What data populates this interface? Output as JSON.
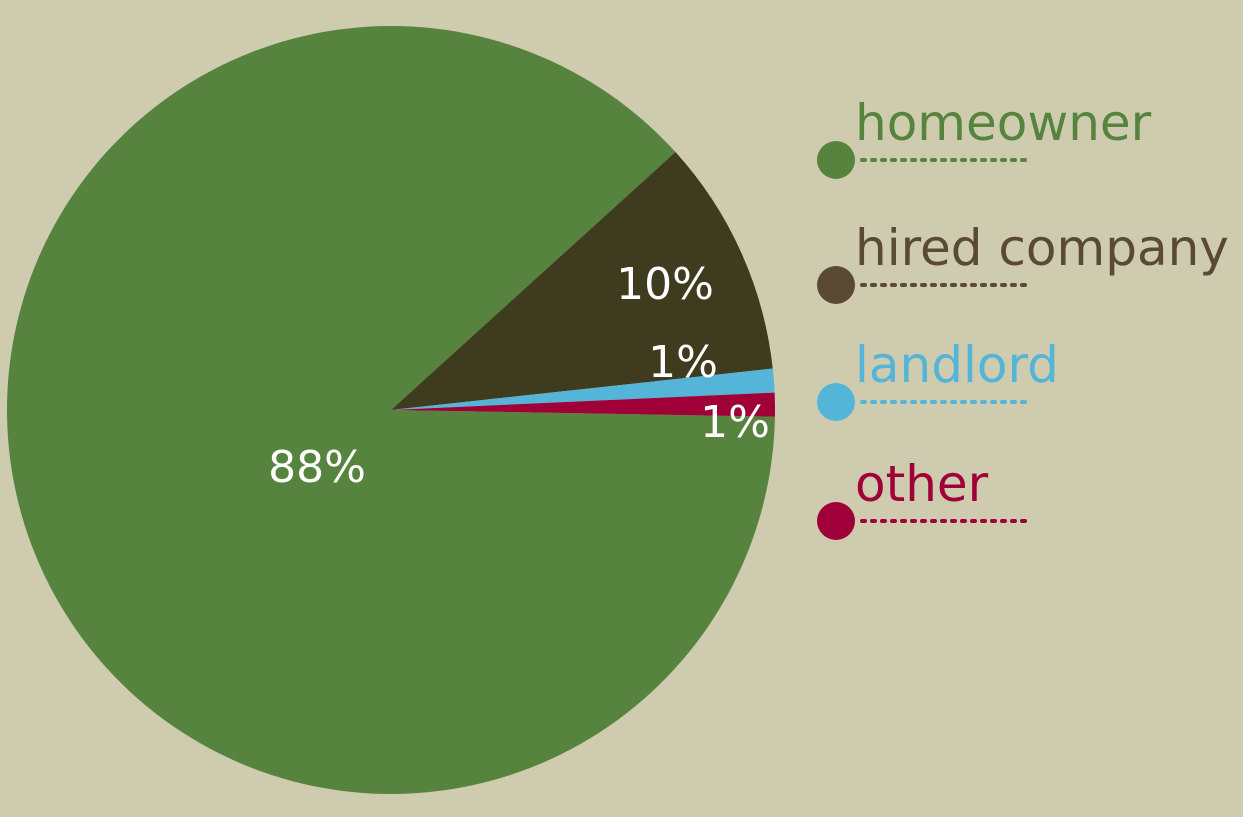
{
  "chart_data": {
    "type": "pie",
    "categories": [
      "homeowner",
      "hired company",
      "landlord",
      "other"
    ],
    "values": [
      88,
      10,
      1,
      1
    ],
    "value_labels": [
      "88%",
      "10%",
      "1%",
      "1%"
    ],
    "colors": [
      "#56843f",
      "#3f3b1e",
      "#55b5d8",
      "#9f0038"
    ],
    "legend_colors": [
      "#56843f",
      "#5a4a35",
      "#55b5d8",
      "#9f0038"
    ],
    "legend": "right"
  }
}
